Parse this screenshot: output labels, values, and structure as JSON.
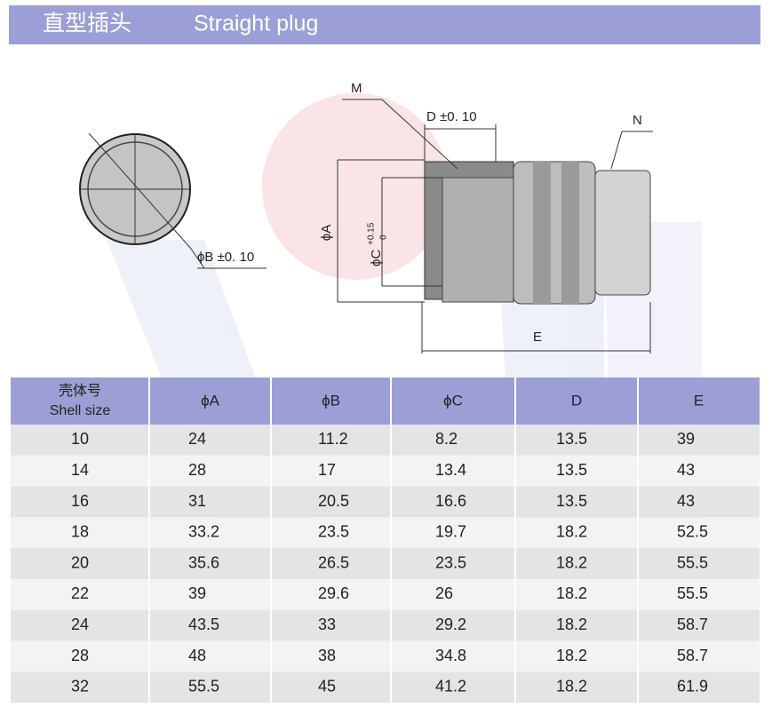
{
  "header": {
    "title_cn": "直型插头",
    "title_en": "Straight plug"
  },
  "drawing": {
    "m": "M",
    "d": "D ±0. 10",
    "n": "N",
    "phi_a": "ϕA",
    "phi_c": "ϕC",
    "phi_c_upper": "+0.15",
    "phi_c_lower": "0",
    "phi_b": "ϕB ±0. 10",
    "e": "E"
  },
  "table": {
    "shell_header": [
      "壳体号",
      "Shell size"
    ],
    "columns": [
      "ϕA",
      "ϕB",
      "ϕC",
      "D",
      "E"
    ],
    "rows": [
      [
        10,
        24,
        11.2,
        8.2,
        13.5,
        39
      ],
      [
        14,
        28,
        17,
        13.4,
        13.5,
        43
      ],
      [
        16,
        31,
        20.5,
        16.6,
        13.5,
        43
      ],
      [
        18,
        33.2,
        23.5,
        19.7,
        18.2,
        52.5
      ],
      [
        20,
        35.6,
        26.5,
        23.5,
        18.2,
        55.5
      ],
      [
        22,
        39,
        29.6,
        26,
        18.2,
        55.5
      ],
      [
        24,
        43.5,
        33,
        29.2,
        18.2,
        58.7
      ],
      [
        28,
        48,
        38,
        34.8,
        18.2,
        58.7
      ],
      [
        32,
        55.5,
        45,
        41.2,
        18.2,
        61.9
      ]
    ]
  }
}
